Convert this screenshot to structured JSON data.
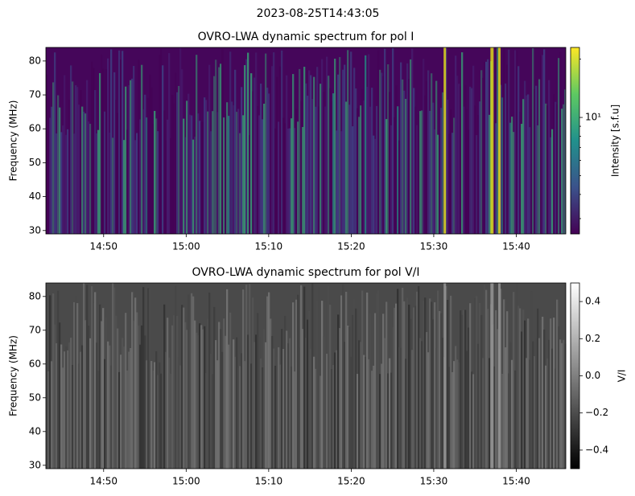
{
  "title": "2023-08-25T14:43:05",
  "chart_data": [
    {
      "type": "heatmap",
      "title": "OVRO-LWA dynamic spectrum for pol I",
      "ylabel": "Frequency (MHz)",
      "xlim": [
        "14:43",
        "15:46"
      ],
      "xticks": [
        "14:50",
        "15:00",
        "15:10",
        "15:20",
        "15:30",
        "15:40"
      ],
      "ylim": [
        29,
        84
      ],
      "yticks": [
        30,
        40,
        50,
        60,
        70,
        80
      ],
      "colormap": "viridis",
      "color_scale": "log",
      "colorbar_label": "Intensity [s.f.u]",
      "clim": [
        2.5,
        23
      ],
      "cticks": [
        {
          "value": 10,
          "label": "10¹"
        }
      ],
      "cminor_ticks": [
        3,
        4,
        5,
        6,
        7,
        8,
        9,
        20
      ]
    },
    {
      "type": "heatmap",
      "title": "OVRO-LWA dynamic spectrum for pol V/I",
      "ylabel": "Frequency (MHz)",
      "xlim": [
        "14:43",
        "15:46"
      ],
      "xticks": [
        "14:50",
        "15:00",
        "15:10",
        "15:20",
        "15:30",
        "15:40"
      ],
      "ylim": [
        29,
        84
      ],
      "yticks": [
        30,
        40,
        50,
        60,
        70,
        80
      ],
      "colormap": "gray",
      "color_scale": "linear",
      "colorbar_label": "V/I",
      "clim": [
        -0.5,
        0.5
      ],
      "cticks": [
        0.4,
        0.2,
        {
          "value": 0,
          "label": "0.0"
        },
        {
          "value": -0.2,
          "label": "−0.2"
        },
        {
          "value": -0.4,
          "label": "−0.4"
        }
      ]
    }
  ]
}
